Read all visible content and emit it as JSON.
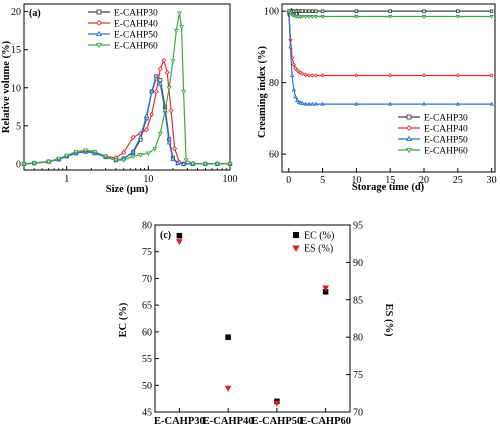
{
  "chart_data": [
    {
      "type": "line",
      "panel_label": "(a)",
      "xlabel": "Size (µm)",
      "ylabel": "Relative volume (%)",
      "xscale": "log",
      "xlim": [
        0.3,
        100
      ],
      "ylim": [
        -0.8,
        21
      ],
      "xticks": [
        1,
        10,
        100
      ],
      "xtick_labels": [
        "1",
        "10",
        "100"
      ],
      "yticks": [
        0,
        5,
        10,
        15,
        20
      ],
      "ytick_labels": [
        "0",
        "5",
        "10",
        "15",
        "20"
      ],
      "legend_placement": "top-right",
      "series": [
        {
          "name": "E-CAHP30",
          "color": "#404040",
          "marker": "square",
          "x": [
            0.3,
            0.4,
            0.6,
            0.8,
            1.0,
            1.3,
            1.7,
            2.2,
            3.0,
            4.0,
            5.0,
            6.5,
            8.0,
            9.5,
            11.0,
            12.5,
            14.0,
            16.0,
            18.0,
            20.0,
            23.0,
            27.0,
            35.0,
            50.0,
            70.0,
            100.0
          ],
          "y": [
            0,
            0.1,
            0.3,
            0.6,
            1.0,
            1.4,
            1.6,
            1.4,
            0.9,
            0.5,
            0.7,
            1.5,
            3.2,
            6.0,
            9.5,
            11.5,
            11.0,
            7.5,
            3.2,
            0.8,
            0.1,
            0,
            0,
            0,
            0,
            0
          ]
        },
        {
          "name": "E-CAHP40",
          "color": "#e03030",
          "marker": "diamond",
          "x": [
            0.3,
            0.4,
            0.6,
            0.8,
            1.0,
            1.3,
            1.7,
            2.2,
            3.0,
            4.0,
            5.0,
            6.5,
            8.0,
            9.5,
            11.0,
            12.5,
            14.0,
            15.5,
            17.0,
            19.0,
            21.0,
            24.0,
            28.0,
            35.0,
            50.0,
            70.0,
            100.0
          ],
          "y": [
            0,
            0.1,
            0.3,
            0.6,
            1.0,
            1.4,
            1.7,
            1.5,
            1.0,
            0.8,
            1.5,
            3.5,
            4.0,
            4.5,
            6.5,
            9.5,
            12.5,
            13.6,
            12.0,
            7.0,
            2.0,
            0.2,
            0,
            0,
            0,
            0,
            0
          ]
        },
        {
          "name": "E-CAHP50",
          "color": "#2a6fd6",
          "marker": "triangle-up",
          "x": [
            0.3,
            0.4,
            0.6,
            0.8,
            1.0,
            1.3,
            1.7,
            2.2,
            3.0,
            4.0,
            5.0,
            6.5,
            8.0,
            9.5,
            11.0,
            12.5,
            14.0,
            16.0,
            18.0,
            20.0,
            23.0,
            27.0,
            35.0,
            50.0,
            70.0,
            100.0
          ],
          "y": [
            0,
            0.1,
            0.3,
            0.6,
            1.0,
            1.4,
            1.6,
            1.4,
            0.9,
            0.5,
            0.7,
            1.6,
            3.5,
            6.3,
            9.5,
            11.2,
            10.5,
            7.0,
            2.8,
            0.6,
            0.1,
            0,
            0,
            0,
            0,
            0
          ]
        },
        {
          "name": "E-CAHP60",
          "color": "#3aa84a",
          "marker": "triangle-down",
          "x": [
            0.3,
            0.4,
            0.6,
            0.8,
            1.0,
            1.3,
            1.7,
            2.2,
            3.0,
            4.0,
            5.0,
            6.5,
            8.0,
            10.0,
            12.0,
            14.0,
            16.0,
            18.0,
            20.0,
            22.0,
            24.0,
            25.5,
            27.0,
            29.0,
            35.0,
            50.0,
            70.0,
            100.0
          ],
          "y": [
            0,
            0.1,
            0.3,
            0.7,
            1.1,
            1.6,
            1.8,
            1.6,
            1.0,
            0.5,
            0.5,
            1.0,
            1.2,
            1.4,
            2.0,
            4.0,
            7.0,
            10.0,
            13.5,
            17.5,
            19.8,
            18.0,
            9.5,
            0.5,
            0,
            0,
            0,
            0
          ]
        }
      ]
    },
    {
      "type": "line",
      "panel_label": "(b)",
      "xlabel": "Storage time (d)",
      "ylabel": "Creaming index (%)",
      "xlim": [
        -1,
        30.5
      ],
      "ylim": [
        55,
        102
      ],
      "xticks": [
        0,
        5,
        10,
        15,
        20,
        25,
        30
      ],
      "xtick_labels": [
        "0",
        "5",
        "10",
        "15",
        "20",
        "25",
        "30"
      ],
      "yticks": [
        60,
        80,
        100
      ],
      "ytick_labels": [
        "60",
        "80",
        "100"
      ],
      "legend_placement": "bottom-right",
      "series": [
        {
          "name": "E-CAHP30",
          "color": "#404040",
          "marker": "square",
          "x": [
            0,
            0.25,
            0.5,
            0.75,
            1,
            1.25,
            1.5,
            1.75,
            2,
            2.5,
            3,
            3.5,
            4,
            5,
            10,
            15,
            20,
            25,
            30
          ],
          "y": [
            100,
            100,
            100,
            100,
            100,
            100,
            100,
            100,
            100,
            100,
            100,
            100,
            100,
            100,
            100,
            100,
            100,
            100,
            100
          ]
        },
        {
          "name": "E-CAHP40",
          "color": "#e03030",
          "marker": "diamond",
          "x": [
            0,
            0.25,
            0.5,
            0.75,
            1,
            1.25,
            1.5,
            1.75,
            2,
            2.5,
            3,
            3.5,
            4,
            5,
            10,
            15,
            20,
            25,
            30
          ],
          "y": [
            100,
            92,
            87,
            85,
            84,
            83.5,
            83,
            82.8,
            82.5,
            82.2,
            82,
            82,
            82,
            82,
            82,
            82,
            82,
            82,
            82
          ]
        },
        {
          "name": "E-CAHP50",
          "color": "#2a6fd6",
          "marker": "triangle-up",
          "x": [
            0,
            0.25,
            0.5,
            0.75,
            1,
            1.25,
            1.5,
            1.75,
            2,
            2.5,
            3,
            3.5,
            4,
            5,
            10,
            15,
            20,
            25,
            30
          ],
          "y": [
            100,
            90,
            82,
            78,
            76,
            75,
            74.5,
            74.3,
            74.2,
            74,
            74,
            74,
            74,
            74,
            74,
            74,
            74,
            74,
            74
          ]
        },
        {
          "name": "E-CAHP60",
          "color": "#3aa84a",
          "marker": "triangle-down",
          "x": [
            0,
            0.25,
            0.5,
            0.75,
            1,
            1.25,
            1.5,
            1.75,
            2,
            2.5,
            3,
            3.5,
            4,
            5,
            10,
            15,
            20,
            25,
            30
          ],
          "y": [
            100,
            99.5,
            99,
            98.8,
            98.6,
            98.5,
            98.5,
            98.5,
            98.5,
            98.5,
            98.5,
            98.5,
            98.5,
            98.5,
            98.5,
            98.5,
            98.5,
            98.5,
            98.5
          ]
        }
      ]
    },
    {
      "type": "scatter",
      "panel_label": "(c)",
      "categories": [
        "E-CAHP30",
        "E-CAHP40",
        "E-CAHP50",
        "E-CAHP60"
      ],
      "ylabel": "EC (%)",
      "y2label": "ES (%)",
      "ylim": [
        45,
        80
      ],
      "y2lim": [
        70,
        95
      ],
      "yticks": [
        45,
        50,
        55,
        60,
        65,
        70,
        75,
        80
      ],
      "ytick_labels": [
        "45",
        "50",
        "55",
        "60",
        "65",
        "70",
        "75",
        "80"
      ],
      "y2ticks": [
        70,
        75,
        80,
        85,
        90,
        95
      ],
      "y2tick_labels": [
        "70",
        "75",
        "80",
        "85",
        "90",
        "95"
      ],
      "legend_placement": "top-right",
      "series": [
        {
          "name": "EC (%)",
          "axis": "left",
          "color": "#000000",
          "marker": "square",
          "values": [
            78,
            59,
            47,
            67.5
          ]
        },
        {
          "name": "ES (%)",
          "axis": "right",
          "color": "#e02020",
          "marker": "triangle-down",
          "values": [
            92.8,
            73.2,
            71.2,
            86.6
          ]
        }
      ]
    }
  ]
}
